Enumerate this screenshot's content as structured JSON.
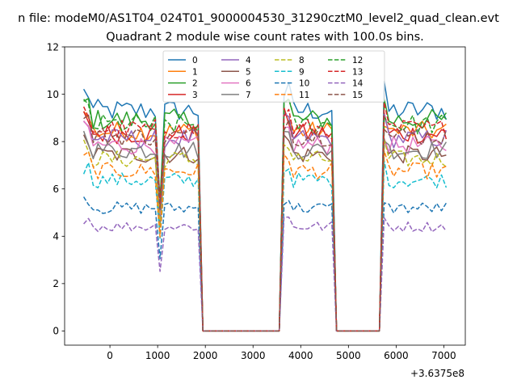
{
  "suptitle": "n file: modeM0/AS1T04_024T01_9000004530_31290cztM0_level2_quad_clean.evt",
  "chart_data": {
    "type": "line",
    "title": "Quadrant 2 module wise count rates with 100.0s bins.",
    "xlabel": "",
    "ylabel": "",
    "x_offset_label": "+3.6375e8",
    "xlim": [
      -950,
      7450
    ],
    "ylim": [
      -0.6,
      12.0
    ],
    "xticks": [
      0,
      1000,
      2000,
      3000,
      4000,
      5000,
      6000,
      7000
    ],
    "yticks": [
      0,
      2,
      4,
      6,
      8,
      10,
      12
    ],
    "grid": false,
    "legend": {
      "placement": "upper-center",
      "ncol": 4
    },
    "active_segments": [
      {
        "start": -550,
        "end": 1850
      },
      {
        "start": 3650,
        "end": 4650
      },
      {
        "start": 5700,
        "end": 7050
      }
    ],
    "series": [
      {
        "name": "0",
        "level": 9.5,
        "dash": "solid",
        "color": "#1f77b4"
      },
      {
        "name": "1",
        "level": 8.6,
        "dash": "solid",
        "color": "#ff7f0e"
      },
      {
        "name": "2",
        "level": 9.1,
        "dash": "solid",
        "color": "#2ca02c"
      },
      {
        "name": "3",
        "level": 8.5,
        "dash": "solid",
        "color": "#d62728"
      },
      {
        "name": "4",
        "level": 8.3,
        "dash": "solid",
        "color": "#9467bd"
      },
      {
        "name": "5",
        "level": 7.6,
        "dash": "solid",
        "color": "#8c564b"
      },
      {
        "name": "6",
        "level": 8.0,
        "dash": "solid",
        "color": "#e377c2"
      },
      {
        "name": "7",
        "level": 7.8,
        "dash": "solid",
        "color": "#7f7f7f"
      },
      {
        "name": "8",
        "level": 7.4,
        "dash": "dashed",
        "color": "#bcbd22"
      },
      {
        "name": "9",
        "level": 6.5,
        "dash": "dashed",
        "color": "#17becf"
      },
      {
        "name": "10",
        "level": 5.3,
        "dash": "dashed",
        "color": "#1f77b4"
      },
      {
        "name": "11",
        "level": 6.9,
        "dash": "dashed",
        "color": "#ff7f0e"
      },
      {
        "name": "12",
        "level": 8.9,
        "dash": "dashed",
        "color": "#2ca02c"
      },
      {
        "name": "13",
        "level": 8.7,
        "dash": "dashed",
        "color": "#d62728"
      },
      {
        "name": "14",
        "level": 4.5,
        "dash": "dashed",
        "color": "#9467bd"
      },
      {
        "name": "15",
        "level": 8.4,
        "dash": "dashed",
        "color": "#8c564b"
      }
    ]
  }
}
